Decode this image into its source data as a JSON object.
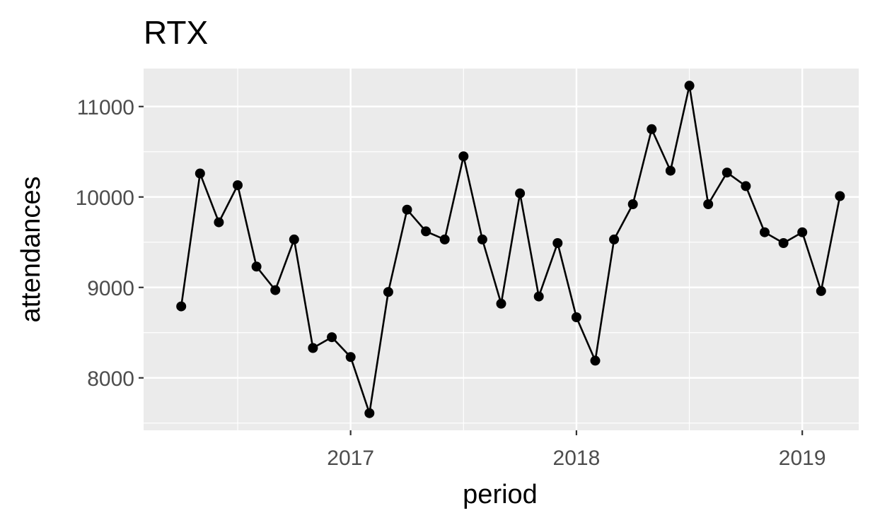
{
  "chart_data": {
    "type": "line",
    "title": "RTX",
    "xlabel": "period",
    "ylabel": "attendances",
    "x_tick_labels": [
      "2017",
      "2018",
      "2019"
    ],
    "y_tick_labels": [
      "8000",
      "9000",
      "10000",
      "11000"
    ],
    "x_ticks": [
      "2017-01",
      "2018-01",
      "2019-01"
    ],
    "y_ticks": [
      8000,
      9000,
      10000,
      11000
    ],
    "xlim": [
      "2016-02",
      "2019-04"
    ],
    "ylim": [
      7420,
      11420
    ],
    "grid": true,
    "x": [
      "2016-04",
      "2016-05",
      "2016-06",
      "2016-07",
      "2016-08",
      "2016-09",
      "2016-10",
      "2016-11",
      "2016-12",
      "2017-01",
      "2017-02",
      "2017-03",
      "2017-04",
      "2017-05",
      "2017-06",
      "2017-07",
      "2017-08",
      "2017-09",
      "2017-10",
      "2017-11",
      "2017-12",
      "2018-01",
      "2018-02",
      "2018-03",
      "2018-04",
      "2018-05",
      "2018-06",
      "2018-07",
      "2018-08",
      "2018-09",
      "2018-10",
      "2018-11",
      "2018-12",
      "2019-01",
      "2019-02",
      "2019-03"
    ],
    "y": [
      8790,
      10260,
      9720,
      10130,
      9230,
      8970,
      9530,
      8330,
      8450,
      8230,
      7610,
      8950,
      9860,
      9620,
      9530,
      10450,
      9530,
      8820,
      10040,
      8900,
      9490,
      8670,
      8190,
      9530,
      9920,
      10750,
      10290,
      11230,
      9920,
      10270,
      10120,
      9610,
      9490,
      9610,
      8960,
      10010
    ],
    "colors": {
      "panel": "#ebebeb",
      "grid": "#ffffff",
      "line": "#000000",
      "point": "#000000"
    }
  }
}
